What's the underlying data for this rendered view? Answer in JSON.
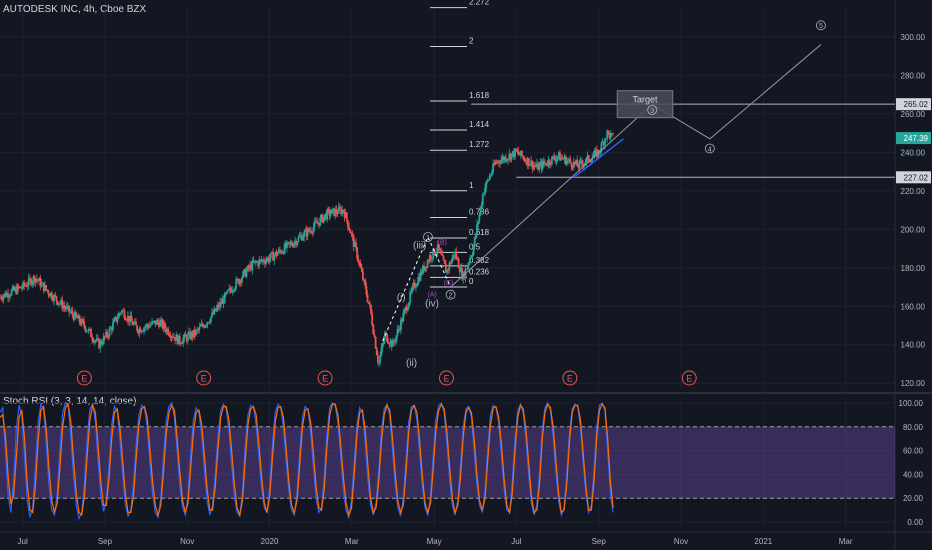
{
  "header": {
    "symbol_title": "AUTODESK INC, 4h, Cboe BZX"
  },
  "rsi_panel": {
    "title": "Stoch RSI (3, 3, 14, 14, close)"
  },
  "colors": {
    "background": "#131722",
    "grid": "#1e2230",
    "up": "#26a69a",
    "down": "#ef5350",
    "rsi_k": "#2962ff",
    "rsi_d": "#ff6d00",
    "rsi_band": "#7e57c2",
    "earnings": "#ef5350",
    "fib": "#d1d4dc",
    "wave_a": "#ab47bc"
  },
  "chart_data": [
    {
      "type": "candlestick",
      "title": "AUTODESK INC, 4h, Cboe BZX",
      "ylim": [
        117,
        315
      ],
      "y_ticks": [
        "300.00",
        "280.00",
        "260.00",
        "240.00",
        "220.00",
        "200.00",
        "180.00",
        "160.00",
        "140.00",
        "120.00"
      ],
      "y_tick_values": [
        300,
        280,
        260,
        240,
        220,
        200,
        180,
        160,
        140,
        120
      ],
      "x_tick_labels": [
        "Jul",
        "Sep",
        "Nov",
        "2020",
        "Mar",
        "May",
        "Jul",
        "Sep",
        "Nov",
        "2021",
        "Mar"
      ],
      "x_tick_months": [
        0,
        2,
        4,
        6,
        8,
        10,
        12,
        14,
        16,
        18,
        20
      ],
      "x_range_months": [
        -0.55,
        21.2
      ],
      "price_path": [
        {
          "m": -0.55,
          "p": 165
        },
        {
          "m": 0.0,
          "p": 170
        },
        {
          "m": 0.3,
          "p": 175
        },
        {
          "m": 0.6,
          "p": 168
        },
        {
          "m": 1.0,
          "p": 160
        },
        {
          "m": 1.5,
          "p": 150
        },
        {
          "m": 1.85,
          "p": 140
        },
        {
          "m": 2.05,
          "p": 145
        },
        {
          "m": 2.4,
          "p": 158
        },
        {
          "m": 2.8,
          "p": 148
        },
        {
          "m": 3.3,
          "p": 152
        },
        {
          "m": 3.8,
          "p": 142
        },
        {
          "m": 4.2,
          "p": 146
        },
        {
          "m": 4.6,
          "p": 155
        },
        {
          "m": 5.1,
          "p": 170
        },
        {
          "m": 5.6,
          "p": 182
        },
        {
          "m": 6.0,
          "p": 185
        },
        {
          "m": 6.5,
          "p": 192
        },
        {
          "m": 7.0,
          "p": 200
        },
        {
          "m": 7.4,
          "p": 208
        },
        {
          "m": 7.8,
          "p": 210
        },
        {
          "m": 7.95,
          "p": 200
        },
        {
          "m": 8.15,
          "p": 185
        },
        {
          "m": 8.45,
          "p": 158
        },
        {
          "m": 8.65,
          "p": 130
        },
        {
          "m": 8.8,
          "p": 145
        },
        {
          "m": 9.0,
          "p": 140
        },
        {
          "m": 9.2,
          "p": 152
        },
        {
          "m": 9.5,
          "p": 170
        },
        {
          "m": 9.9,
          "p": 186
        },
        {
          "m": 10.1,
          "p": 190
        },
        {
          "m": 10.3,
          "p": 178
        },
        {
          "m": 10.5,
          "p": 188
        },
        {
          "m": 10.7,
          "p": 175
        },
        {
          "m": 10.95,
          "p": 190
        },
        {
          "m": 11.2,
          "p": 220
        },
        {
          "m": 11.5,
          "p": 235
        },
        {
          "m": 12.0,
          "p": 240
        },
        {
          "m": 12.5,
          "p": 232
        },
        {
          "m": 13.0,
          "p": 238
        },
        {
          "m": 13.5,
          "p": 233
        },
        {
          "m": 14.0,
          "p": 240
        },
        {
          "m": 14.2,
          "p": 250
        },
        {
          "m": 14.35,
          "p": 247.39
        }
      ],
      "last_price_label": "247.39",
      "horizontal_levels": [
        {
          "label": "265.02",
          "value": 265.02,
          "from_month": 10.9
        },
        {
          "label": "227.02",
          "value": 227.02,
          "from_month": 12.0
        }
      ],
      "fib_levels": [
        {
          "label": "2.272",
          "value": 315.2
        },
        {
          "label": "2",
          "value": 295.0
        },
        {
          "label": "1.618",
          "value": 266.7
        },
        {
          "label": "1.414",
          "value": 251.6
        },
        {
          "label": "1.272",
          "value": 241.1
        },
        {
          "label": "1",
          "value": 220.0
        },
        {
          "label": "0.786",
          "value": 206.1
        },
        {
          "label": "0.618",
          "value": 195.5
        },
        {
          "label": "0.5",
          "value": 188.0
        },
        {
          "label": "0.382",
          "value": 181.0
        },
        {
          "label": "0.236",
          "value": 175.0
        },
        {
          "label": "0",
          "value": 170.0
        }
      ],
      "fib_x_months": [
        9.9,
        10.8
      ],
      "wave_labels": [
        {
          "text": "(i)",
          "m": 9.2,
          "p": 163
        },
        {
          "text": "(ii)",
          "m": 9.45,
          "p": 129
        },
        {
          "text": "(iii)",
          "m": 9.65,
          "p": 190
        },
        {
          "text": "(iv)",
          "m": 9.95,
          "p": 160
        },
        {
          "text": "(B)",
          "m": 10.2,
          "p": 192
        },
        {
          "text": "(A)",
          "m": 9.95,
          "p": 165
        },
        {
          "text": "(C)",
          "m": 10.35,
          "p": 171
        }
      ],
      "circle_waves": [
        {
          "text": "1",
          "m": 9.85,
          "p": 196
        },
        {
          "text": "2",
          "m": 10.4,
          "p": 166
        },
        {
          "text": "3",
          "m": 15.3,
          "p": 262
        },
        {
          "text": "4",
          "m": 16.7,
          "p": 242
        },
        {
          "text": "5",
          "m": 19.4,
          "p": 306
        }
      ],
      "projection_path": [
        {
          "m": 10.4,
          "p": 170
        },
        {
          "m": 15.3,
          "p": 265
        },
        {
          "m": 16.7,
          "p": 247
        },
        {
          "m": 19.4,
          "p": 296
        }
      ],
      "target_box": {
        "label": "Target",
        "m0": 14.45,
        "m1": 15.8,
        "p0": 258,
        "p1": 272
      },
      "earnings_markers": {
        "label": "E",
        "months": [
          1.5,
          4.4,
          7.35,
          10.3,
          13.3,
          16.2
        ]
      }
    },
    {
      "type": "line",
      "title": "Stoch RSI (3, 3, 14, 14, close)",
      "ylim": [
        -5,
        105
      ],
      "y_ticks": [
        "100.00",
        "80.00",
        "60.00",
        "40.00",
        "20.00",
        "0.00"
      ],
      "y_tick_values": [
        100,
        80,
        60,
        40,
        20,
        0
      ],
      "band": [
        20,
        80
      ],
      "series": [
        {
          "name": "K",
          "values": [
            92,
            96,
            60,
            22,
            8,
            35,
            78,
            98,
            90,
            55,
            18,
            4,
            12,
            46,
            84,
            99,
            94,
            66,
            30,
            10,
            6,
            24,
            62,
            92,
            100,
            98,
            72,
            38,
            14,
            3,
            8,
            33,
            70,
            95,
            99,
            85,
            52,
            22,
            9,
            18,
            48,
            82,
            97,
            93,
            70,
            40,
            15,
            5,
            10,
            32,
            66,
            90,
            98,
            96,
            80,
            50,
            24,
            8,
            4,
            20,
            55,
            85,
            97,
            100,
            88,
            60,
            30,
            12,
            6,
            22,
            58,
            86,
            96,
            92,
            74,
            44,
            18,
            6,
            14,
            40,
            72,
            94,
            99,
            95,
            78,
            48,
            22,
            8,
            5,
            26,
            64,
            90,
            98,
            97,
            82,
            54,
            28,
            12,
            8,
            30,
            66,
            92,
            99,
            96,
            80,
            52,
            26,
            10,
            6,
            24,
            60,
            88,
            97,
            94,
            76,
            46,
            20,
            8,
            12,
            38,
            74,
            96,
            100,
            98,
            84,
            56,
            28,
            10,
            4,
            18,
            50,
            82,
            96,
            92,
            68,
            36,
            14,
            6,
            16,
            44,
            78,
            95,
            99,
            90,
            62,
            32,
            12,
            5,
            20,
            52,
            84,
            97,
            98,
            86,
            58,
            30,
            12,
            6,
            22,
            56,
            86,
            98,
            100,
            92,
            66,
            36,
            14,
            6,
            18,
            48,
            80,
            95,
            97,
            88,
            60,
            32,
            14,
            8,
            26,
            62,
            90,
            98,
            96,
            84,
            56,
            28,
            10,
            8,
            34,
            70,
            93,
            99,
            92,
            70,
            40,
            16,
            6,
            14,
            42,
            78,
            96,
            100,
            94,
            72,
            42,
            18,
            6,
            12,
            40,
            76,
            95,
            99,
            97,
            80,
            50,
            24,
            8,
            14,
            44,
            80,
            98,
            100,
            94,
            60,
            24,
            8
          ]
        },
        {
          "name": "D",
          "values": [
            88,
            90,
            72,
            38,
            15,
            22,
            55,
            88,
            94,
            70,
            32,
            10,
            8,
            30,
            68,
            94,
            97,
            78,
            44,
            18,
            8,
            16,
            46,
            80,
            96,
            99,
            84,
            52,
            24,
            8,
            6,
            22,
            56,
            86,
            98,
            92,
            64,
            34,
            14,
            14,
            36,
            70,
            92,
            95,
            80,
            52,
            24,
            8,
            8,
            22,
            54,
            82,
            95,
            97,
            88,
            62,
            34,
            14,
            6,
            14,
            42,
            74,
            92,
            98,
            94,
            70,
            42,
            18,
            8,
            16,
            46,
            76,
            92,
            94,
            82,
            56,
            28,
            10,
            10,
            30,
            62,
            88,
            97,
            97,
            86,
            60,
            32,
            12,
            6,
            18,
            52,
            82,
            95,
            97,
            90,
            66,
            38,
            16,
            8,
            22,
            54,
            84,
            96,
            97,
            88,
            62,
            34,
            14,
            8,
            18,
            48,
            80,
            94,
            95,
            84,
            58,
            30,
            12,
            10,
            28,
            64,
            90,
            99,
            99,
            90,
            66,
            38,
            16,
            6,
            12,
            40,
            74,
            92,
            94,
            78,
            48,
            20,
            8,
            12,
            34,
            68,
            90,
            98,
            94,
            72,
            42,
            18,
            8,
            14,
            42,
            76,
            94,
            98,
            92,
            68,
            38,
            16,
            8,
            16,
            46,
            78,
            94,
            99,
            95,
            76,
            46,
            20,
            8,
            14,
            38,
            72,
            92,
            96,
            92,
            70,
            40,
            18,
            10,
            20,
            52,
            82,
            96,
            97,
            88,
            66,
            36,
            14,
            8,
            24,
            60,
            88,
            98,
            95,
            78,
            50,
            22,
            8,
            10,
            32,
            70,
            92,
            99,
            96,
            80,
            52,
            24,
            8,
            10,
            32,
            68,
            92,
            98,
            98,
            86,
            58,
            30,
            10,
            10,
            34,
            72,
            94,
            99,
            96,
            70,
            34,
            12
          ]
        }
      ]
    }
  ]
}
